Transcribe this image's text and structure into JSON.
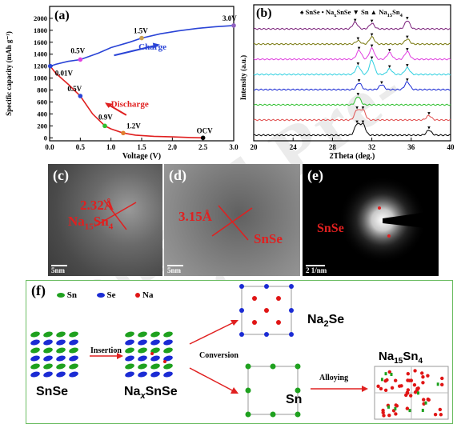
{
  "watermark": "Journal Pre-proof",
  "panel_a": {
    "label": "(a)",
    "ylabel": "Specific capacity (mAh g⁻¹)",
    "xlabel": "Voltage (V)",
    "ann_charge": "Charge",
    "ann_discharge": "Discharge",
    "pt_labels": [
      "0.01V",
      "0.5V",
      "1.5V",
      "3.0V",
      "0.5V",
      "0.9V",
      "1.2V",
      "OCV"
    ]
  },
  "panel_b": {
    "label": "(b)",
    "ylabel": "Intensity (a.u.)",
    "xlabel": "2Theta (deg.)",
    "legend": [
      "SnSe",
      "Na",
      "x",
      "SnSe",
      "Sn",
      "Na",
      "15",
      "Sn",
      "4"
    ]
  },
  "panel_c": {
    "label": "(c)",
    "d_spacing": "2.32Å",
    "phase_main": "Na",
    "phase_sub1": "15",
    "phase_mid": "Sn",
    "phase_sub2": "4",
    "scale": "5nm"
  },
  "panel_d": {
    "label": "(d)",
    "d_spacing": "3.15Å",
    "phase": "SnSe",
    "scale": "5nm"
  },
  "panel_e": {
    "label": "(e)",
    "phase": "SnSe",
    "scale": "2 1/nm"
  },
  "panel_f": {
    "label": "(f)",
    "legend": [
      "Sn",
      "Se",
      "Na"
    ],
    "snse": "SnSe",
    "naxsnse_a": "Na",
    "naxsnse_b": "x",
    "naxsnse_c": "SnSe",
    "insertion": "Insertion",
    "conversion": "Conversion",
    "alloying": "Alloying",
    "na2se_a": "Na",
    "na2se_b": "2",
    "na2se_c": "Se",
    "sn": "Sn",
    "na15_a": "Na",
    "na15_b": "15",
    "na15_c": "Sn",
    "na15_d": "4"
  },
  "colors": {
    "sn": "#1fa11f",
    "se": "#1b2bd4",
    "na": "#e01515",
    "red": "#e02020",
    "blue": "#2a44d6",
    "frame": "#6cbd62"
  },
  "chart_data": [
    {
      "type": "line",
      "panel": "a",
      "xlabel": "Voltage (V)",
      "ylabel": "Specific capacity (mAh g⁻¹)",
      "xlim": [
        0,
        3.0
      ],
      "ylim": [
        -50,
        2200
      ],
      "xticks": [
        "0.0",
        "0.5",
        "1.0",
        "1.5",
        "2.0",
        "2.5",
        "3.0"
      ],
      "yticks": [
        "0",
        "200",
        "400",
        "600",
        "800",
        "1000",
        "1200",
        "1400",
        "1600",
        "1800",
        "2000"
      ],
      "series": [
        {
          "name": "Charge",
          "x": [
            0.01,
            0.1,
            0.3,
            0.5,
            0.8,
            1.0,
            1.3,
            1.5,
            1.8,
            2.1,
            2.4,
            2.7,
            3.0
          ],
          "y": [
            1200,
            1230,
            1280,
            1310,
            1420,
            1510,
            1600,
            1670,
            1740,
            1790,
            1830,
            1860,
            1880
          ]
        },
        {
          "name": "Discharge",
          "x": [
            2.5,
            2.3,
            2.0,
            1.7,
            1.4,
            1.2,
            1.0,
            0.9,
            0.7,
            0.5,
            0.3,
            0.1,
            0.01
          ],
          "y": [
            0,
            5,
            15,
            25,
            45,
            80,
            150,
            200,
            400,
            700,
            900,
            1080,
            1200
          ]
        }
      ],
      "points": [
        {
          "label": "0.01V",
          "x": 0.01,
          "y": 1200,
          "color": "#2a44d6"
        },
        {
          "label": "0.5V",
          "x": 0.5,
          "y": 1310,
          "color": "#e040e0"
        },
        {
          "label": "1.5V",
          "x": 1.5,
          "y": 1670,
          "color": "#c8a050"
        },
        {
          "label": "3.0V",
          "x": 3.0,
          "y": 1880,
          "color": "#9060c0"
        },
        {
          "label": "0.5V",
          "x": 0.5,
          "y": 700,
          "color": "#2a44d6"
        },
        {
          "label": "0.9V",
          "x": 0.9,
          "y": 200,
          "color": "#30c030"
        },
        {
          "label": "1.2V",
          "x": 1.2,
          "y": 80,
          "color": "#e08030"
        },
        {
          "label": "OCV",
          "x": 2.5,
          "y": 0,
          "color": "#000000"
        }
      ]
    },
    {
      "type": "line",
      "panel": "b",
      "xlabel": "2Theta (deg.)",
      "ylabel": "Intensity (a.u.)",
      "xlim": [
        20,
        40
      ],
      "xticks": [
        "20",
        "24",
        "28",
        "32",
        "36",
        "40"
      ],
      "series": [
        {
          "color": "#7a1f7a",
          "offset": 9,
          "peaks": [
            [
              30.3,
              1.2
            ],
            [
              32.0,
              1.0
            ],
            [
              35.6,
              1.5
            ]
          ]
        },
        {
          "color": "#7a7a10",
          "offset": 8,
          "peaks": [
            [
              30.6,
              0.6
            ],
            [
              32.0,
              1.3
            ],
            [
              35.6,
              0.9
            ]
          ]
        },
        {
          "color": "#e040e0",
          "offset": 7,
          "peaks": [
            [
              30.7,
              1.6
            ],
            [
              32.0,
              2.0
            ],
            [
              33.8,
              1.2
            ],
            [
              35.6,
              1.4
            ]
          ]
        },
        {
          "color": "#30d0e0",
          "offset": 6,
          "peaks": [
            [
              30.6,
              1.5
            ],
            [
              32.0,
              2.6
            ],
            [
              33.8,
              1.0
            ],
            [
              35.6,
              1.2
            ]
          ]
        },
        {
          "color": "#1b2bd4",
          "offset": 5,
          "peaks": [
            [
              30.7,
              1.2
            ],
            [
              33.0,
              0.9
            ],
            [
              35.6,
              1.4
            ]
          ]
        },
        {
          "color": "#30c030",
          "offset": 4,
          "peaks": [
            [
              30.6,
              1.5
            ]
          ]
        },
        {
          "color": "#e05050",
          "offset": 3,
          "peaks": [
            [
              30.5,
              1.8
            ],
            [
              31.1,
              1.8
            ],
            [
              37.8,
              0.8
            ]
          ]
        },
        {
          "color": "#000000",
          "offset": 2,
          "peaks": [
            [
              30.5,
              2.0
            ],
            [
              31.1,
              2.0
            ],
            [
              37.8,
              0.9
            ]
          ]
        }
      ]
    }
  ]
}
